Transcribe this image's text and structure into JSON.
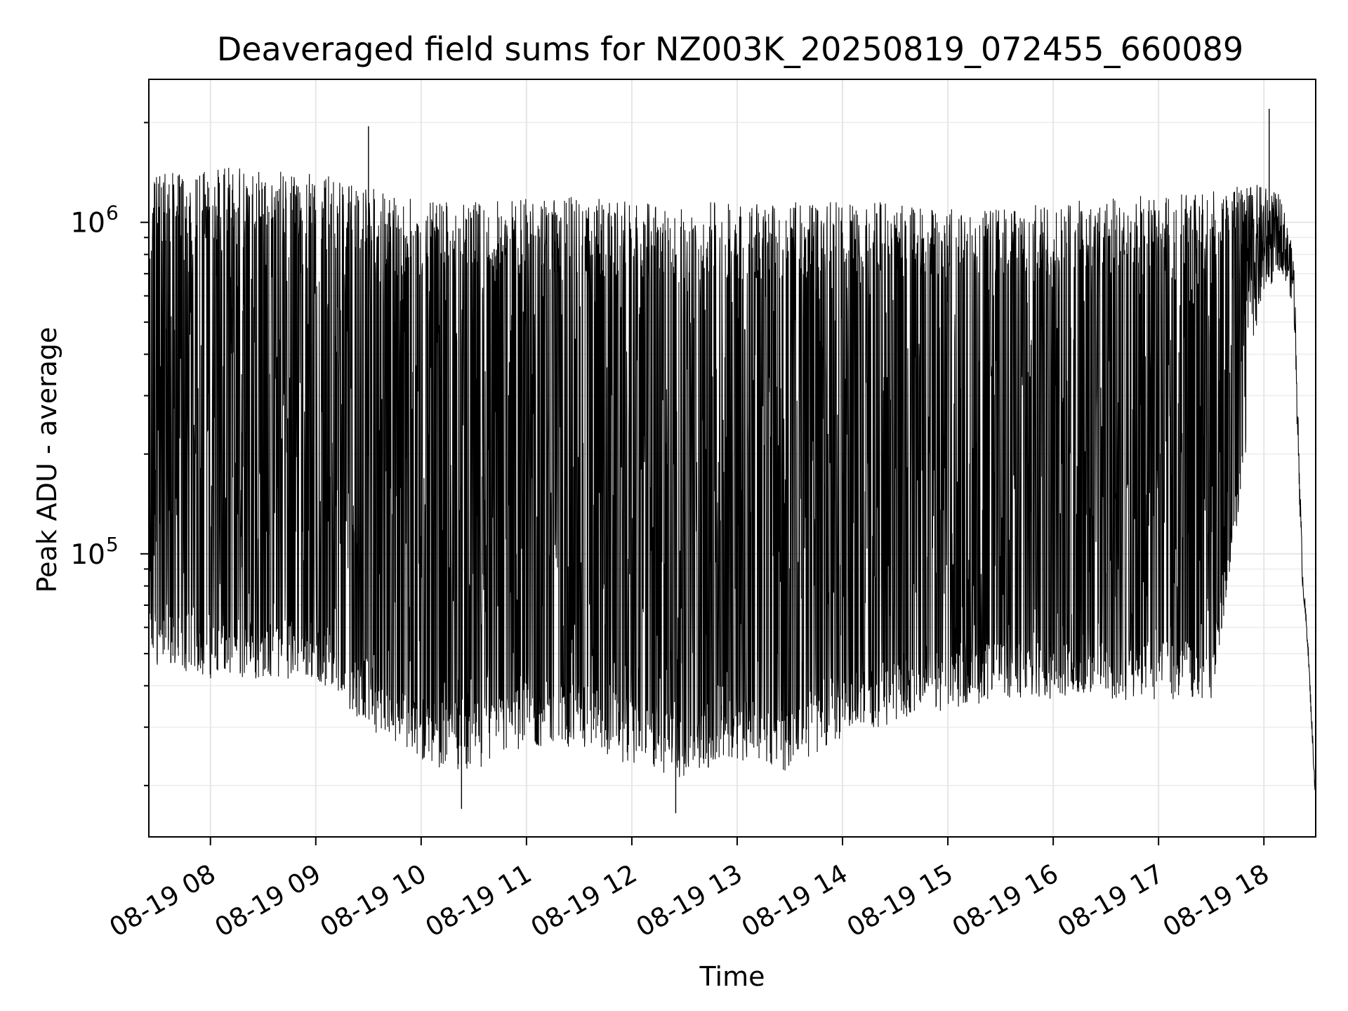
{
  "chart_data": {
    "type": "line",
    "title": "Deaveraged field sums for NZ003K_20250819_072455_660089",
    "xlabel": "Time",
    "ylabel": "Peak ADU - average",
    "yscale": "log",
    "ylim": [
      14000,
      2700000
    ],
    "xlim": [
      "2025-08-19T07:24:55",
      "2025-08-19T18:29:30"
    ],
    "x_ticks": [
      {
        "value": "2025-08-19T08:00:00",
        "label": "08-19 08"
      },
      {
        "value": "2025-08-19T09:00:00",
        "label": "08-19 09"
      },
      {
        "value": "2025-08-19T10:00:00",
        "label": "08-19 10"
      },
      {
        "value": "2025-08-19T11:00:00",
        "label": "08-19 11"
      },
      {
        "value": "2025-08-19T12:00:00",
        "label": "08-19 12"
      },
      {
        "value": "2025-08-19T13:00:00",
        "label": "08-19 13"
      },
      {
        "value": "2025-08-19T14:00:00",
        "label": "08-19 14"
      },
      {
        "value": "2025-08-19T15:00:00",
        "label": "08-19 15"
      },
      {
        "value": "2025-08-19T16:00:00",
        "label": "08-19 16"
      },
      {
        "value": "2025-08-19T17:00:00",
        "label": "08-19 17"
      },
      {
        "value": "2025-08-19T18:00:00",
        "label": "08-19 18"
      }
    ],
    "y_ticks": [
      {
        "value": 100000,
        "base": "10",
        "exp": "5"
      },
      {
        "value": 1000000,
        "base": "10",
        "exp": "6"
      }
    ],
    "grid": true,
    "line_color": "#000000",
    "envelope": [
      {
        "t": "2025-08-19T07:25:00",
        "low": 46000,
        "high": 1400000
      },
      {
        "t": "2025-08-19T08:00:00",
        "low": 42000,
        "high": 1450000
      },
      {
        "t": "2025-08-19T08:30:00",
        "low": 42000,
        "high": 1500000
      },
      {
        "t": "2025-08-19T09:00:00",
        "low": 42000,
        "high": 1450000
      },
      {
        "t": "2025-08-19T09:30:00",
        "low": 30000,
        "high": 1300000
      },
      {
        "t": "2025-08-19T10:00:00",
        "low": 23000,
        "high": 1150000
      },
      {
        "t": "2025-08-19T10:30:00",
        "low": 22000,
        "high": 1150000
      },
      {
        "t": "2025-08-19T11:00:00",
        "low": 26000,
        "high": 1200000
      },
      {
        "t": "2025-08-19T11:30:00",
        "low": 26000,
        "high": 1200000
      },
      {
        "t": "2025-08-19T12:00:00",
        "low": 23000,
        "high": 1150000
      },
      {
        "t": "2025-08-19T12:30:00",
        "low": 21000,
        "high": 1150000
      },
      {
        "t": "2025-08-19T13:00:00",
        "low": 24000,
        "high": 1150000
      },
      {
        "t": "2025-08-19T13:30:00",
        "low": 22000,
        "high": 1150000
      },
      {
        "t": "2025-08-19T14:00:00",
        "low": 28000,
        "high": 1150000
      },
      {
        "t": "2025-08-19T14:30:00",
        "low": 31000,
        "high": 1150000
      },
      {
        "t": "2025-08-19T15:00:00",
        "low": 34000,
        "high": 1100000
      },
      {
        "t": "2025-08-19T15:30:00",
        "low": 36000,
        "high": 1100000
      },
      {
        "t": "2025-08-19T16:00:00",
        "low": 36000,
        "high": 1150000
      },
      {
        "t": "2025-08-19T16:30:00",
        "low": 36000,
        "high": 1200000
      },
      {
        "t": "2025-08-19T17:00:00",
        "low": 36000,
        "high": 1200000
      },
      {
        "t": "2025-08-19T17:30:00",
        "low": 36000,
        "high": 1250000
      },
      {
        "t": "2025-08-19T17:50:00",
        "low": 190000,
        "high": 1300000
      },
      {
        "t": "2025-08-19T18:00:00",
        "low": 380000,
        "high": 1300000
      },
      {
        "t": "2025-08-19T18:10:00",
        "low": 550000,
        "high": 1200000
      },
      {
        "t": "2025-08-19T18:17:00",
        "low": 450000,
        "high": 800000
      },
      {
        "t": "2025-08-19T18:20:00",
        "low": 100000,
        "high": 300000
      },
      {
        "t": "2025-08-19T18:22:00",
        "low": 65000,
        "high": 105000
      },
      {
        "t": "2025-08-19T18:25:00",
        "low": 45000,
        "high": 62000
      },
      {
        "t": "2025-08-19T18:29:00",
        "low": 16000,
        "high": 24000
      }
    ],
    "notable_points": [
      {
        "t": "2025-08-19T09:30:00",
        "value": 1950000
      },
      {
        "t": "2025-08-19T10:23:00",
        "value": 17000
      },
      {
        "t": "2025-08-19T12:25:00",
        "value": 16500
      },
      {
        "t": "2025-08-19T18:03:00",
        "value": 2200000
      }
    ]
  }
}
